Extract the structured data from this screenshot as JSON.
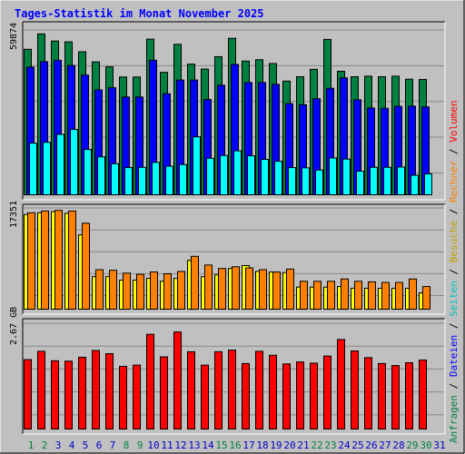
{
  "title": "Tages-Statistik im Monat November 2025",
  "colors": {
    "background": "#c0c0c0",
    "plot_bg": "#c0c0c0",
    "grid": "#888888",
    "title": "#0000ff",
    "weekday_label": "#0000cc",
    "weekend_label": "#008040",
    "hits": "#008040",
    "files": "#0000ff",
    "pages": "#00ffff",
    "visits": "#ffff00",
    "sites": "#ff8000",
    "kbytes": "#ff0000"
  },
  "legend": {
    "top_right": [
      {
        "text": "Anfragen",
        "color": "#008040"
      },
      {
        "text": " / ",
        "color": "#000000"
      },
      {
        "text": "Dateien",
        "color": "#0000ff"
      },
      {
        "text": " / ",
        "color": "#000000"
      },
      {
        "text": "Seiten",
        "color": "#00c0c0"
      },
      {
        "text": " / ",
        "color": "#000000"
      },
      {
        "text": "Besuche",
        "color": "#c0a000"
      },
      {
        "text": " / ",
        "color": "#000000"
      },
      {
        "text": "Rechner",
        "color": "#ff8000"
      },
      {
        "text": " / ",
        "color": "#000000"
      },
      {
        "text": "Volumen",
        "color": "#ff0000"
      }
    ]
  },
  "chart_data": [
    {
      "type": "bar",
      "y_label_max": "59874",
      "ylim": [
        0,
        59874
      ],
      "grid": true,
      "categories": [
        "1",
        "2",
        "3",
        "4",
        "5",
        "6",
        "7",
        "8",
        "9",
        "10",
        "11",
        "12",
        "13",
        "14",
        "15",
        "16",
        "17",
        "18",
        "19",
        "20",
        "21",
        "22",
        "23",
        "24",
        "25",
        "26",
        "27",
        "28",
        "29",
        "30",
        "31"
      ],
      "weekend_days": [
        "1",
        "2",
        "8",
        "9",
        "15",
        "16",
        "22",
        "23",
        "29",
        "30"
      ],
      "series": [
        {
          "key": "hits",
          "values": [
            53000,
            58600,
            56000,
            55700,
            52100,
            48400,
            46600,
            42900,
            42900,
            56700,
            44600,
            54800,
            47600,
            45800,
            50300,
            57000,
            48700,
            49200,
            47800,
            41400,
            43000,
            45700,
            56600,
            45000,
            43000,
            43200,
            43000,
            43200,
            42100,
            42000,
            0
          ]
        },
        {
          "key": "files",
          "values": [
            46500,
            48500,
            49000,
            47100,
            43600,
            38200,
            39000,
            35600,
            35600,
            49000,
            36800,
            41800,
            41800,
            34700,
            39900,
            47500,
            40900,
            40900,
            40200,
            33200,
            32800,
            35000,
            38800,
            42600,
            34600,
            31600,
            31500,
            32200,
            32300,
            32000,
            0
          ]
        },
        {
          "key": "pages",
          "values": [
            18800,
            19100,
            22000,
            23800,
            16500,
            13800,
            11300,
            9900,
            10000,
            11800,
            10400,
            11000,
            21100,
            13300,
            14300,
            16000,
            14200,
            12900,
            12200,
            9900,
            9800,
            9000,
            13400,
            13000,
            8600,
            10000,
            10000,
            10100,
            7100,
            7600,
            0
          ]
        }
      ]
    },
    {
      "type": "bar",
      "y_label_max": "17351",
      "ylim": [
        0,
        17351
      ],
      "grid": true,
      "series": [
        {
          "key": "visits",
          "values": [
            16300,
            16600,
            16800,
            16500,
            12800,
            5600,
            5600,
            5000,
            5000,
            5300,
            4800,
            5300,
            8400,
            5600,
            5900,
            7000,
            7500,
            6500,
            6400,
            6300,
            3800,
            3800,
            3800,
            3900,
            3600,
            3600,
            3600,
            3600,
            3600,
            2800,
            0
          ]
        },
        {
          "key": "sites",
          "values": [
            16600,
            16900,
            17000,
            16900,
            14800,
            6800,
            6700,
            6200,
            6000,
            6400,
            6100,
            6500,
            9100,
            7600,
            7000,
            7300,
            7100,
            6800,
            6400,
            6900,
            4800,
            4800,
            4800,
            5200,
            4800,
            4700,
            4600,
            4600,
            5200,
            3900,
            0
          ]
        }
      ]
    },
    {
      "type": "bar",
      "y_label_max": "2.67 GB",
      "ylim": [
        0,
        2.67
      ],
      "grid": true,
      "series": [
        {
          "key": "kbytes",
          "values": [
            1.76,
            1.97,
            1.73,
            1.72,
            1.82,
            1.99,
            1.91,
            1.59,
            1.62,
            2.4,
            1.83,
            2.46,
            1.96,
            1.62,
            1.96,
            2.0,
            1.66,
            1.97,
            1.87,
            1.65,
            1.7,
            1.67,
            1.85,
            2.27,
            1.98,
            1.81,
            1.66,
            1.61,
            1.68,
            1.75,
            0
          ]
        }
      ]
    }
  ]
}
